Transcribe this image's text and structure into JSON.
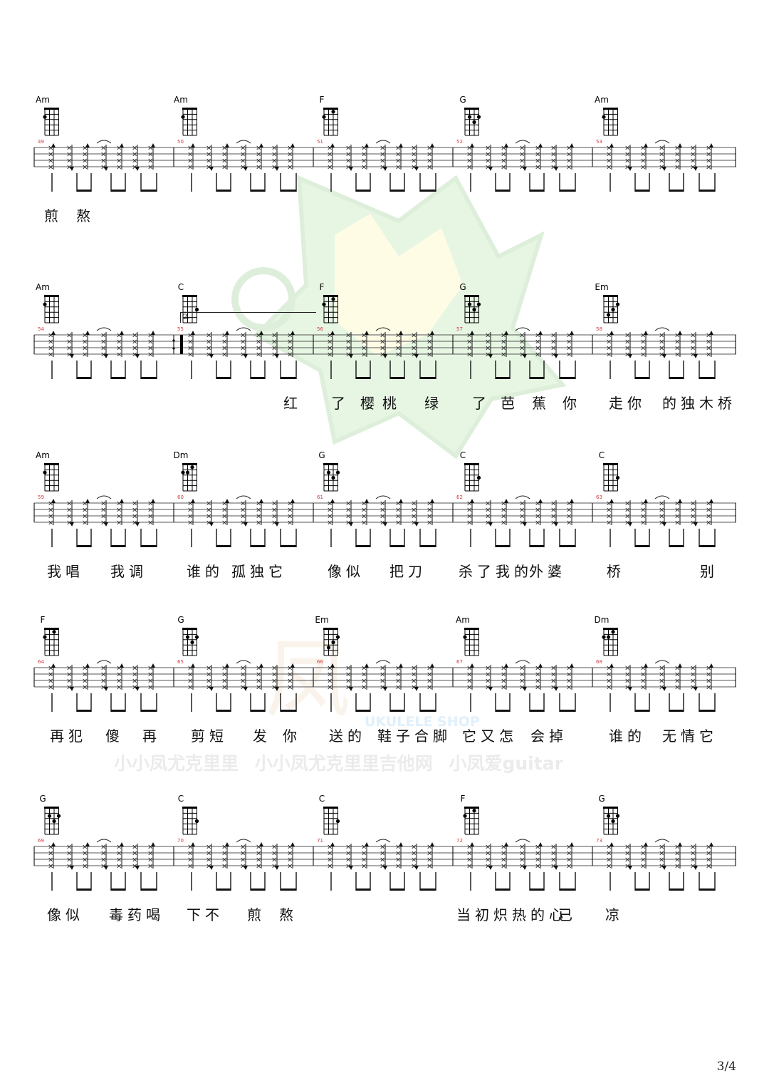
{
  "watermark": {
    "labels": [
      "小小凤尤克里里",
      "小小凤尤克里里吉他网",
      "小凤爱guitar"
    ],
    "shop": "UKULELE SHOP"
  },
  "systems": [
    {
      "measures": [
        {
          "number": "49",
          "chord": "Am"
        },
        {
          "number": "50",
          "chord": "Am"
        },
        {
          "number": "51",
          "chord": "F"
        },
        {
          "number": "52",
          "chord": "G"
        },
        {
          "number": "53",
          "chord": "Am"
        }
      ],
      "lyrics": [
        {
          "text": "煎",
          "pos": 62
        },
        {
          "text": "熬",
          "pos": 107
        }
      ]
    },
    {
      "measures": [
        {
          "number": "54",
          "chord": "Am"
        },
        {
          "number": "55",
          "chord": "C"
        },
        {
          "number": "56",
          "chord": "F"
        },
        {
          "number": "57",
          "chord": "G"
        },
        {
          "number": "58",
          "chord": "Em"
        }
      ],
      "volta": "2.",
      "lyrics": [
        {
          "text": "红",
          "pos": 398
        },
        {
          "text": "了",
          "pos": 465
        },
        {
          "text": "樱",
          "pos": 506
        },
        {
          "text": "桃",
          "pos": 537
        },
        {
          "text": "绿",
          "pos": 596
        },
        {
          "text": "了",
          "pos": 663
        },
        {
          "text": "芭",
          "pos": 703
        },
        {
          "text": "蕉",
          "pos": 747
        },
        {
          "text": "你",
          "pos": 790
        },
        {
          "text": "走你",
          "pos": 855
        },
        {
          "text": "的独木桥",
          "pos": 930
        }
      ]
    },
    {
      "measures": [
        {
          "number": "59",
          "chord": "Am"
        },
        {
          "number": "60",
          "chord": "Dm"
        },
        {
          "number": "61",
          "chord": "G"
        },
        {
          "number": "62",
          "chord": "C"
        },
        {
          "number": "63",
          "chord": "C"
        }
      ],
      "lyrics": [
        {
          "text": "我唱",
          "pos": 66
        },
        {
          "text": "我调",
          "pos": 155
        },
        {
          "text": "谁的",
          "pos": 262
        },
        {
          "text": "孤独它",
          "pos": 325
        },
        {
          "text": "像似",
          "pos": 460
        },
        {
          "text": "把刀",
          "pos": 547
        },
        {
          "text": "杀了我的",
          "pos": 644
        },
        {
          "text": "外婆",
          "pos": 743
        },
        {
          "text": "桥",
          "pos": 852
        },
        {
          "text": "别",
          "pos": 983
        }
      ]
    },
    {
      "measures": [
        {
          "number": "64",
          "chord": "F"
        },
        {
          "number": "65",
          "chord": "G"
        },
        {
          "number": "66",
          "chord": "Em"
        },
        {
          "number": "67",
          "chord": "Am"
        },
        {
          "number": "68",
          "chord": "Dm"
        }
      ],
      "lyrics": [
        {
          "text": "再犯",
          "pos": 70
        },
        {
          "text": "傻",
          "pos": 148
        },
        {
          "text": "再",
          "pos": 200
        },
        {
          "text": "剪短",
          "pos": 268
        },
        {
          "text": "发",
          "pos": 355
        },
        {
          "text": "你",
          "pos": 397
        },
        {
          "text": "送的",
          "pos": 462
        },
        {
          "text": "鞋子合脚",
          "pos": 530
        },
        {
          "text": "它又怎",
          "pos": 649
        },
        {
          "text": "会掉",
          "pos": 745
        },
        {
          "text": "谁的",
          "pos": 855
        },
        {
          "text": "无情它",
          "pos": 930
        }
      ]
    },
    {
      "measures": [
        {
          "number": "69",
          "chord": "G"
        },
        {
          "number": "70",
          "chord": "C"
        },
        {
          "number": "71",
          "chord": "C"
        },
        {
          "number": "72",
          "chord": "F"
        },
        {
          "number": "73",
          "chord": "G"
        }
      ],
      "lyrics": [
        {
          "text": "像似",
          "pos": 66
        },
        {
          "text": "毒药喝",
          "pos": 153
        },
        {
          "text": "下不",
          "pos": 262
        },
        {
          "text": "煎",
          "pos": 347
        },
        {
          "text": "熬",
          "pos": 392
        },
        {
          "text": "当初炽热的心",
          "pos": 641
        },
        {
          "text": "已",
          "pos": 784
        },
        {
          "text": "凉",
          "pos": 850
        }
      ]
    }
  ],
  "page_number": "3/4",
  "colors": {
    "measure_number": "#d23b3b",
    "watermark": "#ebebeb"
  }
}
